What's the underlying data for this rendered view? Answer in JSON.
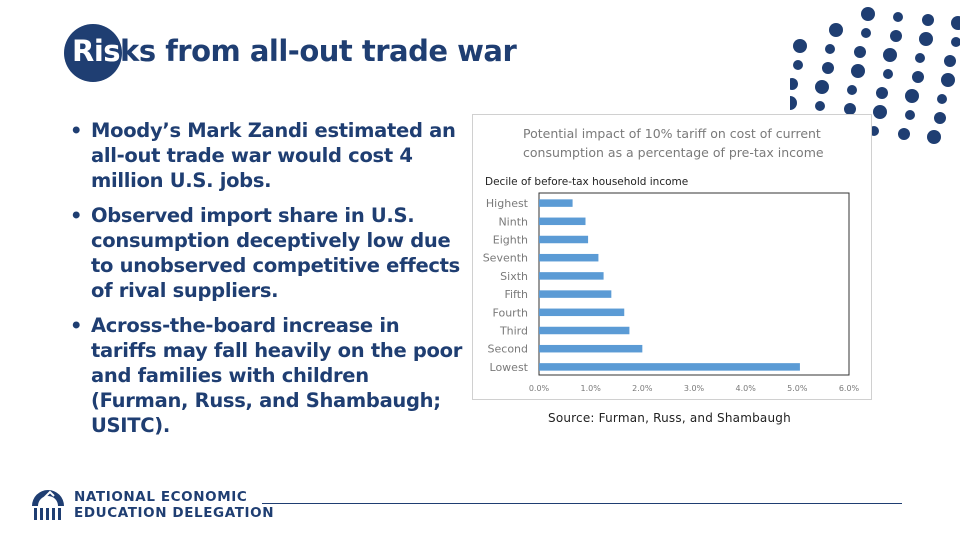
{
  "slide": {
    "title_highlight": "Ris",
    "title_rest": "ks from all-out trade war",
    "bullets": [
      "Moody’s Mark Zandi estimated an all-out trade war would cost 4 million U.S. jobs.",
      "Observed import share in U.S. consumption deceptively low due to unobserved competitive effects of rival suppliers.",
      "Across-the-board increase in tariffs may fall heavily on the poor and families with children (Furman, Russ, and Shambaugh; USITC)."
    ],
    "bullet_glyph": "•",
    "source": "Source: Furman, Russ, and Shambaugh",
    "logo": {
      "line1": "NATIONAL ECONOMIC",
      "line2": "EDUCATION DELEGATION"
    },
    "colors": {
      "primary": "#1f3e72",
      "bar": "#5b9bd5"
    }
  },
  "chart_data": {
    "type": "bar",
    "orientation": "horizontal",
    "title_line1": "Potential impact of 10% tariff on cost of current",
    "title_line2": "consumption as a percentage of pre-tax income",
    "ylabel": "Decile of before-tax household income",
    "categories": [
      "Highest",
      "Ninth",
      "Eighth",
      "Seventh",
      "Sixth",
      "Fifth",
      "Fourth",
      "Third",
      "Second",
      "Lowest"
    ],
    "values": [
      0.65,
      0.9,
      0.95,
      1.15,
      1.25,
      1.4,
      1.65,
      1.75,
      2.0,
      5.05
    ],
    "xlim": [
      0,
      6
    ],
    "xticks": [
      "0.0%",
      "1.0%",
      "2.0%",
      "3.0%",
      "4.0%",
      "5.0%",
      "6.0%"
    ],
    "grid": false
  }
}
